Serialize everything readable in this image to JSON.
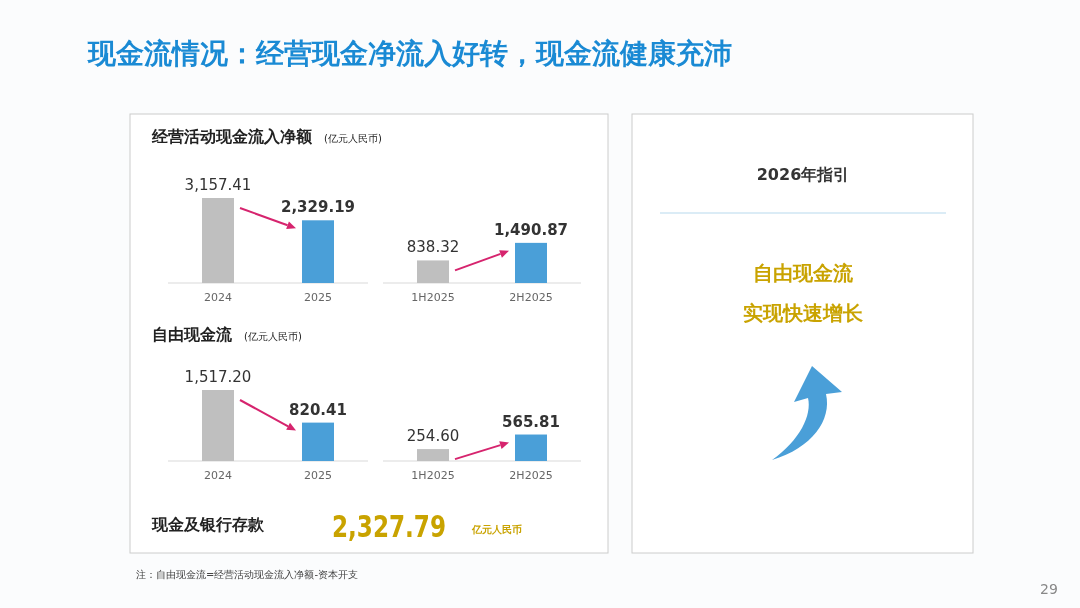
{
  "chart_data": [
    {
      "type": "other",
      "title": "现金流情况：经营现金净流入好转，现金流健康充沛",
      "annotations": [
        "现金及银行存款",
        "2,327.79",
        "亿元人民币",
        "注：自由现金流=经营活动现金流入净额-资本开支",
        "29"
      ]
    },
    {
      "type": "bar",
      "title": "经营活动现金流入净额",
      "subtitle": "(亿元人民币)",
      "categories": [
        "2024",
        "2025"
      ],
      "values": [
        3157.41,
        2329.19
      ],
      "colors": [
        "#bfbfbf",
        "#4a9fd8"
      ],
      "value_labels": [
        "3,157.41",
        "2,329.19"
      ]
    },
    {
      "type": "bar",
      "categories": [
        "1H2025",
        "2H2025"
      ],
      "values": [
        838.32,
        1490.87
      ],
      "colors": [
        "#bfbfbf",
        "#4a9fd8"
      ],
      "value_labels": [
        "838.32",
        "1,490.87"
      ]
    },
    {
      "type": "bar",
      "title": "自由现金流",
      "subtitle": "(亿元人民币)",
      "categories": [
        "2024",
        "2025"
      ],
      "values": [
        1517.2,
        820.41
      ],
      "colors": [
        "#bfbfbf",
        "#4a9fd8"
      ],
      "value_labels": [
        "1,517.20",
        "820.41"
      ]
    },
    {
      "type": "bar",
      "categories": [
        "1H2025",
        "2H2025"
      ],
      "values": [
        254.6,
        565.81
      ],
      "colors": [
        "#bfbfbf",
        "#4a9fd8"
      ],
      "value_labels": [
        "254.60",
        "565.81"
      ]
    },
    {
      "type": "other",
      "title": "2026年指引",
      "annotations": [
        "自由现金流",
        "实现快速增长"
      ]
    }
  ]
}
